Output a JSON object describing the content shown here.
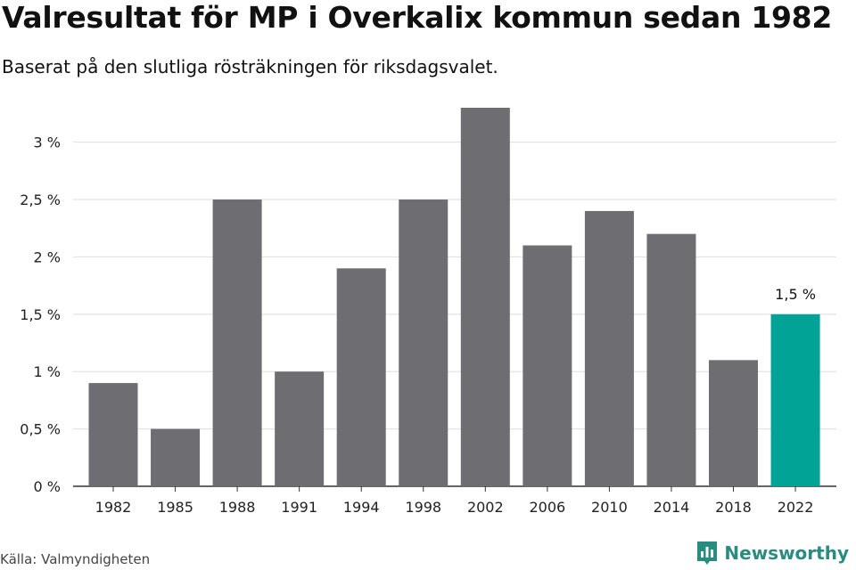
{
  "header": {
    "title": "Valresultat för MP i Overkalix kommun sedan 1982",
    "subtitle": "Baserat på den slutliga rösträkningen för riksdagsvalet."
  },
  "footer": {
    "source": "Källa: Valmyndigheten",
    "brand": "Newsworthy"
  },
  "colors": {
    "bar": "#6e6d72",
    "highlight": "#00a396",
    "grid": "#dddddd",
    "axis": "#333333",
    "brand": "#2a8c80"
  },
  "chart_data": {
    "type": "bar",
    "categories": [
      "1982",
      "1985",
      "1988",
      "1991",
      "1994",
      "1998",
      "2002",
      "2006",
      "2010",
      "2014",
      "2018",
      "2022"
    ],
    "values": [
      0.9,
      0.5,
      2.5,
      1.0,
      1.9,
      2.5,
      3.3,
      2.1,
      2.4,
      2.2,
      1.1,
      1.5
    ],
    "ylim": [
      0,
      3.3
    ],
    "yticks": [
      0,
      0.5,
      1,
      1.5,
      2,
      2.5,
      3
    ],
    "ytick_labels": [
      "0 %",
      "0,5 %",
      "1 %",
      "1,5 %",
      "2 %",
      "2,5 %",
      "3 %"
    ],
    "grid": true,
    "highlight_index": 11,
    "data_labels": [
      {
        "index": 11,
        "text": "1,5 %"
      }
    ]
  }
}
